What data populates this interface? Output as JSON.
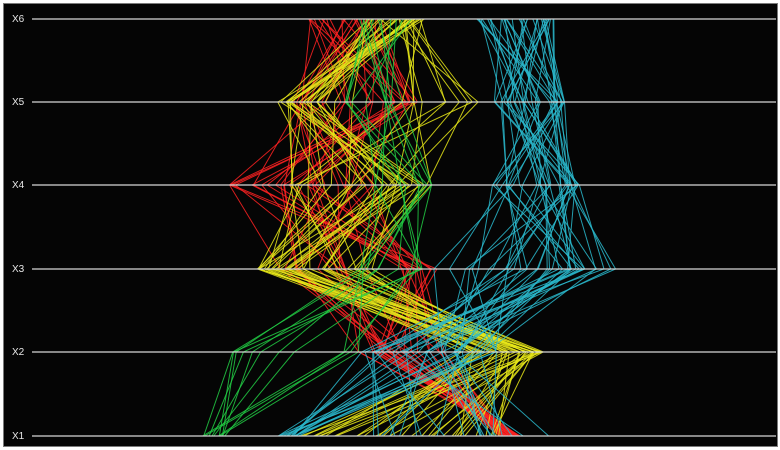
{
  "chart_data": {
    "type": "parallel-coordinates",
    "orientation": "horizontal-axes",
    "axes": [
      "X1",
      "X2",
      "X3",
      "X4",
      "X5",
      "X6"
    ],
    "xlim": [
      0,
      100
    ],
    "grid": false,
    "legend": "none",
    "background": "#050505",
    "axis_color": "#d8d8d8",
    "series": [
      {
        "color": "#ff2222",
        "count": 30,
        "v1": [
          [
            63,
            64
          ],
          [
            64,
            65
          ],
          [
            65,
            66
          ]
        ],
        "v2": [
          [
            44,
            48
          ],
          [
            46,
            52
          ],
          [
            48,
            56
          ]
        ],
        "v3": [
          [
            33,
            36
          ],
          [
            38,
            46
          ],
          [
            49,
            53
          ],
          [
            53,
            55
          ]
        ],
        "v4": [
          [
            26,
            30
          ],
          [
            30,
            34
          ],
          [
            34,
            40
          ],
          [
            40,
            47
          ]
        ],
        "v5": [
          [
            35,
            40
          ],
          [
            40,
            46
          ],
          [
            46,
            52
          ]
        ],
        "v6": [
          [
            37,
            40
          ],
          [
            40,
            44
          ],
          [
            44,
            47
          ]
        ]
      },
      {
        "color": "#e6e619",
        "count": 35,
        "v1": [
          [
            36,
            40
          ],
          [
            40,
            48
          ],
          [
            48,
            56
          ],
          [
            56,
            64
          ]
        ],
        "v2": [
          [
            56,
            62
          ],
          [
            62,
            67
          ],
          [
            67,
            69
          ]
        ],
        "v3": [
          [
            30,
            31
          ],
          [
            31,
            34
          ],
          [
            34,
            40
          ],
          [
            40,
            46
          ]
        ],
        "v4": [
          [
            34,
            40
          ],
          [
            40,
            47
          ],
          [
            47,
            54
          ],
          [
            49,
            54
          ]
        ],
        "v5": [
          [
            33,
            38
          ],
          [
            38,
            50
          ],
          [
            50,
            62
          ]
        ],
        "v6": [
          [
            45,
            48
          ],
          [
            48,
            51
          ],
          [
            51,
            53
          ]
        ]
      },
      {
        "color": "#22cc44",
        "count": 12,
        "v1": [
          [
            22,
            26
          ]
        ],
        "v2": [
          [
            24,
            28
          ],
          [
            28,
            36
          ],
          [
            42,
            48
          ]
        ],
        "v3": [
          [
            44,
            48
          ],
          [
            48,
            53
          ]
        ],
        "v4": [
          [
            44,
            48
          ],
          [
            48,
            52
          ],
          [
            52,
            54
          ]
        ],
        "v5": [
          [
            42,
            46
          ],
          [
            46,
            52
          ]
        ],
        "v6": [
          [
            44,
            48
          ],
          [
            48,
            52
          ]
        ]
      },
      {
        "color": "#2ab8cc",
        "count": 38,
        "v1": [
          [
            33,
            36
          ],
          [
            46,
            56
          ],
          [
            56,
            70
          ]
        ],
        "v2": [
          [
            52,
            58
          ],
          [
            58,
            64
          ],
          [
            44,
            52
          ]
        ],
        "v3": [
          [
            54,
            62
          ],
          [
            62,
            72
          ],
          [
            72,
            80
          ]
        ],
        "v4": [
          [
            62,
            66
          ],
          [
            66,
            72
          ],
          [
            72,
            74
          ]
        ],
        "v5": [
          [
            62,
            66
          ],
          [
            66,
            70
          ],
          [
            70,
            72
          ]
        ],
        "v6": [
          [
            60,
            64
          ],
          [
            64,
            68
          ],
          [
            68,
            71
          ]
        ]
      }
    ]
  }
}
